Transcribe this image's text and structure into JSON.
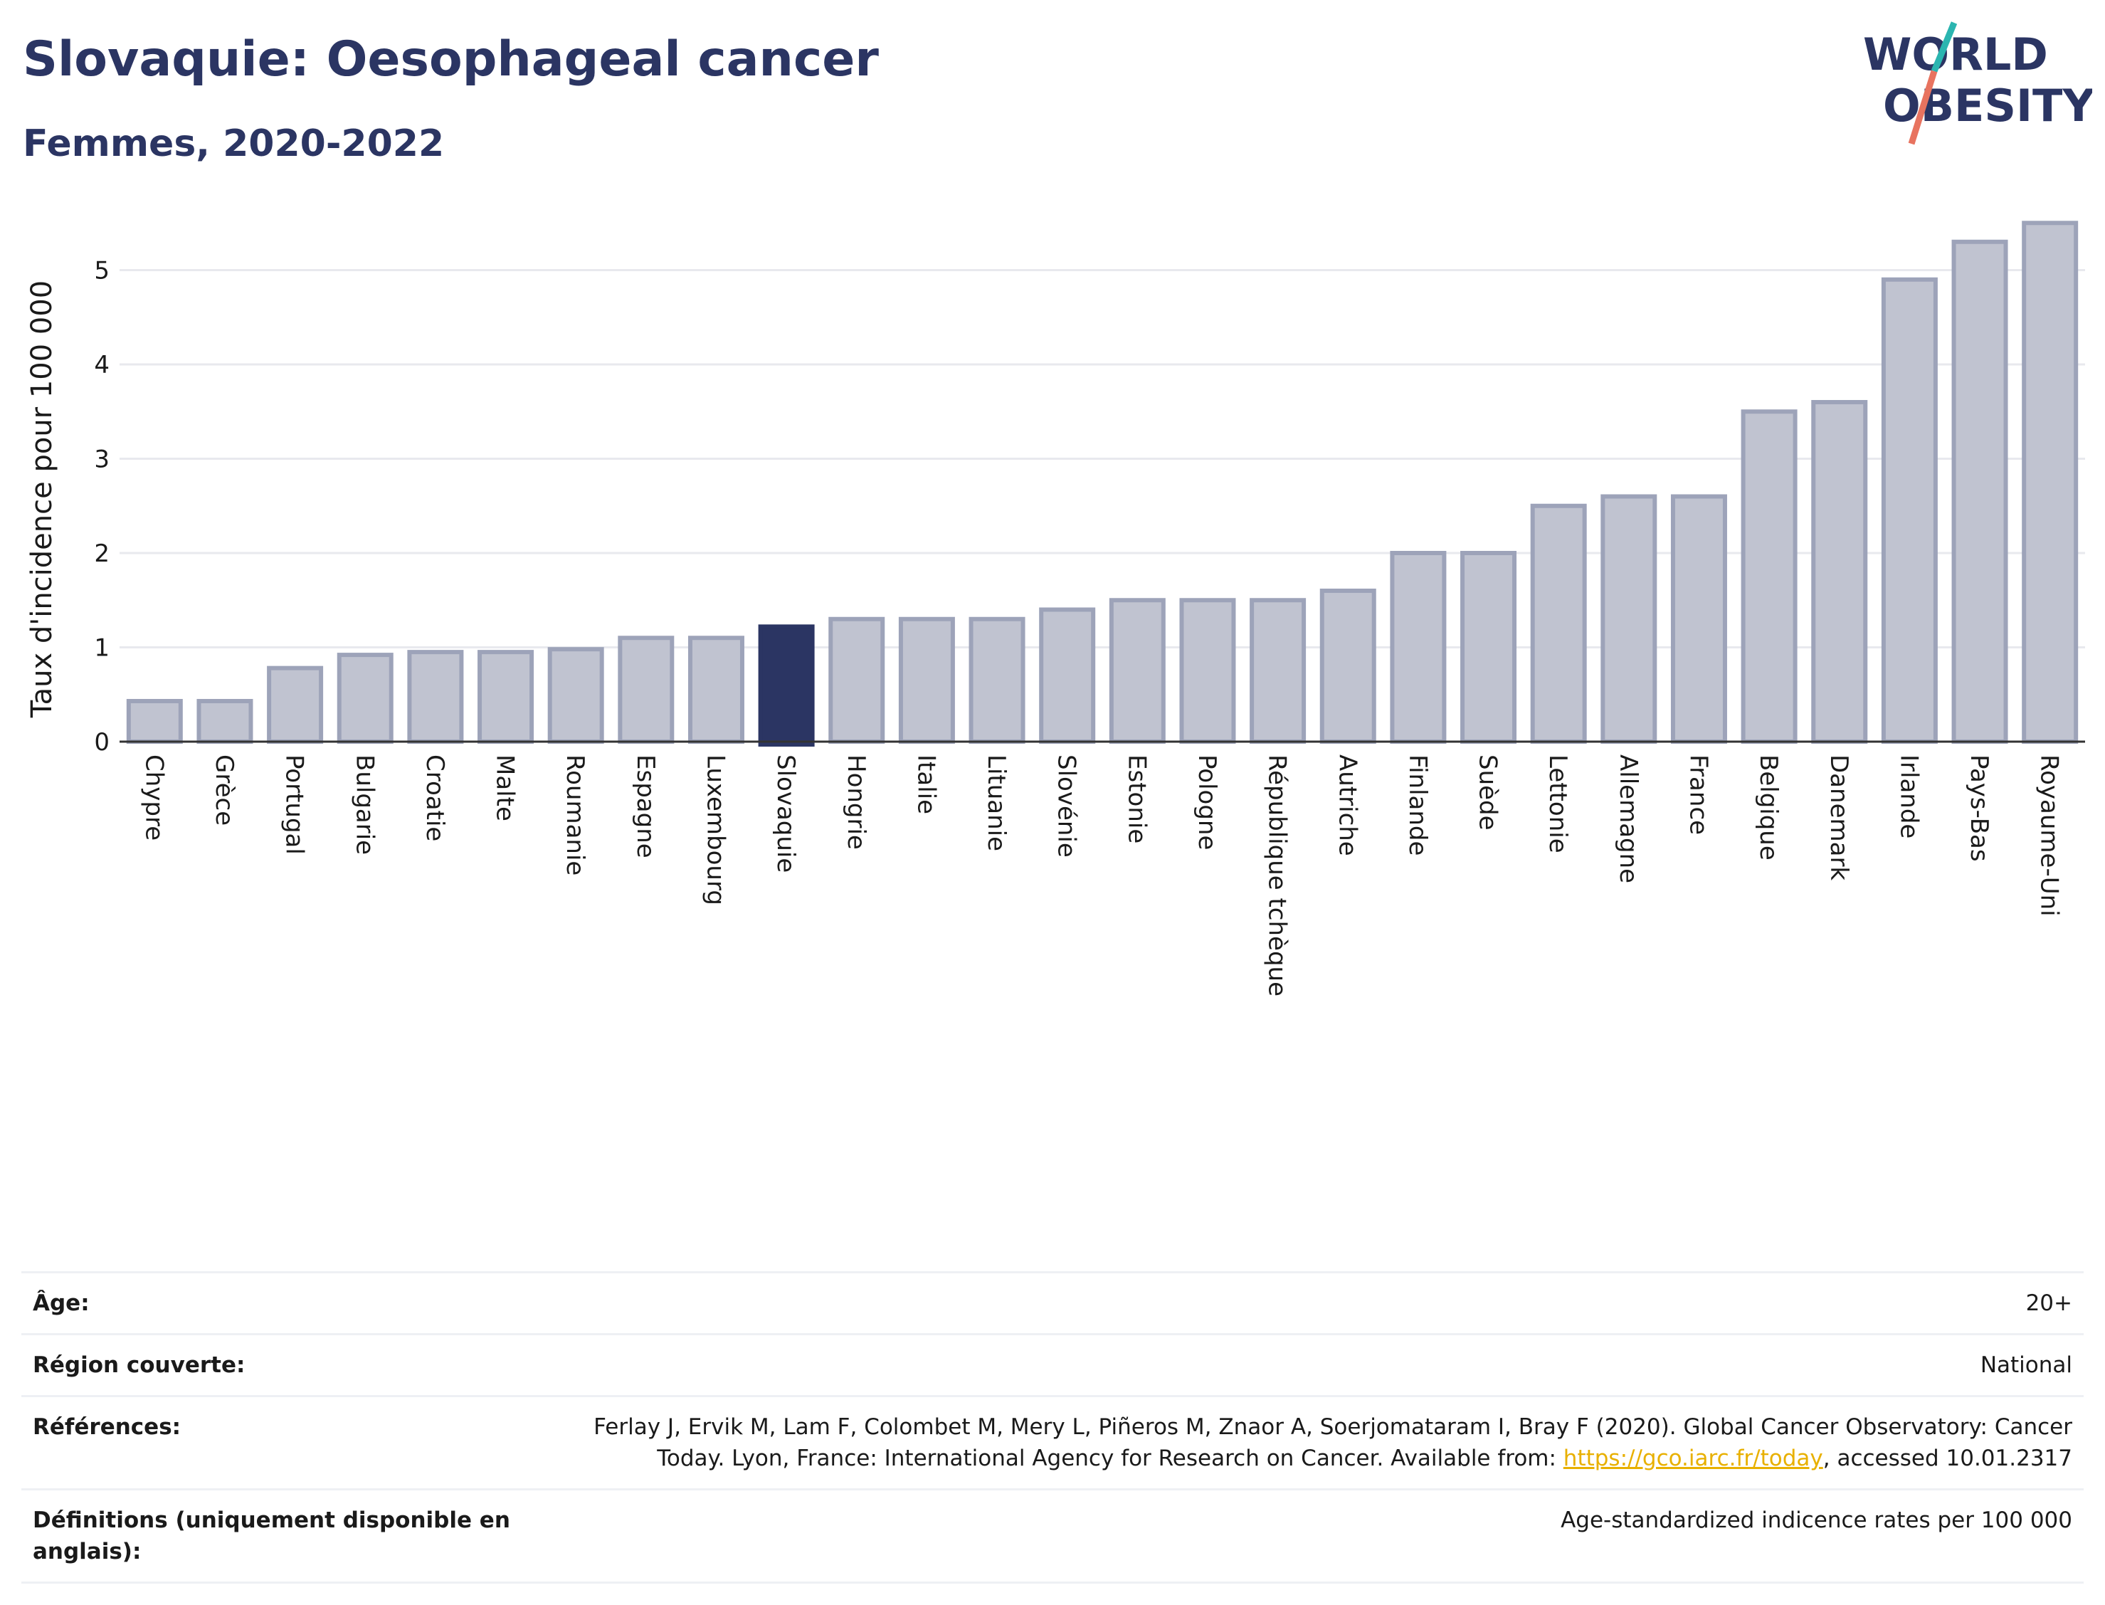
{
  "header": {
    "title": "Slovaquie: Oesophageal cancer",
    "subtitle": "Femmes, 2020-2022"
  },
  "logo": {
    "line1": "WORLD",
    "line2": "OBESITY",
    "colors": {
      "text": "#2b3563",
      "slash_teal": "#2bb5b0",
      "slash_coral": "#e8735f"
    }
  },
  "colors": {
    "bar": "#c0c3d0",
    "bar_border": "#9da3b9",
    "highlight": "#2b3563",
    "grid": "#e8e9ee"
  },
  "chart_data": {
    "type": "bar",
    "ylabel": "Taux d'incidence pour 100 000",
    "xlabel": "",
    "ylim": [
      0,
      5.6
    ],
    "yticks": [
      0,
      1,
      2,
      3,
      4,
      5
    ],
    "grid": true,
    "highlight": "Slovaquie",
    "categories": [
      "Chypre",
      "Grèce",
      "Portugal",
      "Bulgarie",
      "Croatie",
      "Malte",
      "Roumanie",
      "Espagne",
      "Luxembourg",
      "Slovaquie",
      "Hongrie",
      "Italie",
      "Lituanie",
      "Slovénie",
      "Estonie",
      "Pologne",
      "République tchèque",
      "Autriche",
      "Finlande",
      "Suède",
      "Lettonie",
      "Allemagne",
      "France",
      "Belgique",
      "Danemark",
      "Irlande",
      "Pays-Bas",
      "Royaume-Uni"
    ],
    "values": [
      0.43,
      0.43,
      0.78,
      0.92,
      0.95,
      0.95,
      0.98,
      1.1,
      1.1,
      1.22,
      1.3,
      1.3,
      1.3,
      1.4,
      1.5,
      1.5,
      1.5,
      1.6,
      2.0,
      2.0,
      2.5,
      2.6,
      2.6,
      3.5,
      3.6,
      4.9,
      5.3,
      5.5
    ]
  },
  "meta": {
    "age_label": "Âge:",
    "age_value": "20+",
    "region_label": "Région couverte:",
    "region_value": "National",
    "ref_label": "Références:",
    "ref_text": "Ferlay J, Ervik M, Lam F, Colombet M, Mery L, Piñeros M, Znaor A, Soerjomataram I, Bray F (2020). Global Cancer Observatory: Cancer Today. Lyon, France: International Agency for Research on Cancer. Available from:",
    "ref_link": "https://gco.iarc.fr/today",
    "ref_suffix": ", accessed 10.01.2317",
    "def_label": "Définitions (uniquement disponible en anglais):",
    "def_value": "Age-standardized indicence rates per 100 000"
  }
}
